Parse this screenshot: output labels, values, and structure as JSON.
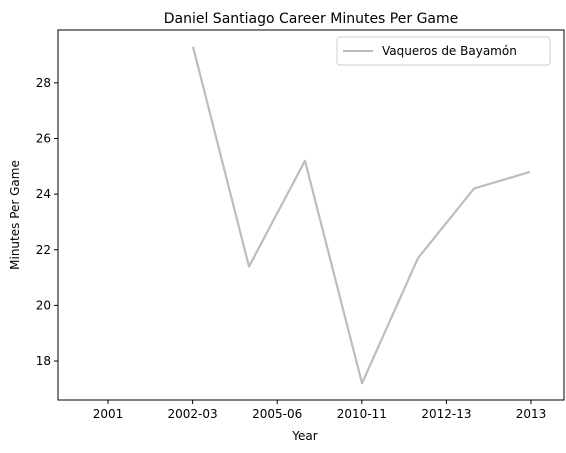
{
  "chart_data": {
    "type": "line",
    "title": "Daniel Santiago Career Minutes Per Game",
    "xlabel": "Year",
    "ylabel": "Minutes Per Game",
    "x_tick_labels": [
      "2001",
      "2002-03",
      "2005-06",
      "2010-11",
      "2012-13",
      "2013"
    ],
    "y_ticks": [
      18,
      20,
      22,
      24,
      26,
      28
    ],
    "ylim": [
      16.6,
      29.9
    ],
    "xlim": [
      -0.75,
      7.75
    ],
    "grid": false,
    "legend_position": "top-right",
    "series": [
      {
        "name": "Vaqueros de Bayamón",
        "color": "#bdbdbd",
        "x": [
          0,
          1,
          2,
          3,
          4,
          5,
          6,
          7
        ],
        "values": [
          29.3,
          21.4,
          25.2,
          17.2,
          21.7,
          24.2,
          24.8,
          null
        ]
      }
    ]
  }
}
